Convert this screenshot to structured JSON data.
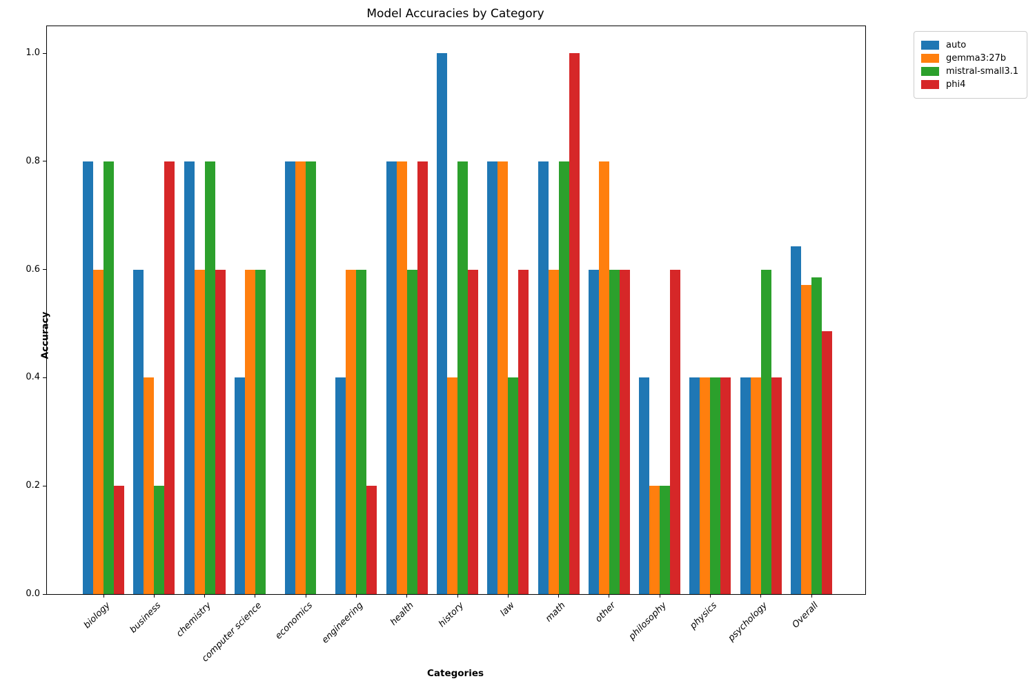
{
  "title": "Model Accuracies by Category",
  "x_axis_label": "Categories",
  "y_axis_label": "Accuracy",
  "legend": {
    "entries": [
      {
        "label": "auto",
        "color": "#1f77b4"
      },
      {
        "label": "gemma3:27b",
        "color": "#ff7f0e"
      },
      {
        "label": "mistral-small3.1",
        "color": "#2ca02c"
      },
      {
        "label": "phi4",
        "color": "#d62728"
      }
    ]
  },
  "chart_data": {
    "type": "bar",
    "title": "Model Accuracies by Category",
    "xlabel": "Categories",
    "ylabel": "Accuracy",
    "categories": [
      "biology",
      "business",
      "chemistry",
      "computer science",
      "economics",
      "engineering",
      "health",
      "history",
      "law",
      "math",
      "other",
      "philosophy",
      "physics",
      "psychology",
      "Overall"
    ],
    "series": [
      {
        "name": "auto",
        "color": "#1f77b4",
        "values": [
          0.8,
          0.6,
          0.8,
          0.4,
          0.8,
          0.4,
          0.8,
          1.0,
          0.8,
          0.8,
          0.6,
          0.4,
          0.4,
          0.4,
          0.643
        ]
      },
      {
        "name": "gemma3:27b",
        "color": "#ff7f0e",
        "values": [
          0.6,
          0.4,
          0.6,
          0.6,
          0.8,
          0.6,
          0.8,
          0.4,
          0.8,
          0.6,
          0.8,
          0.2,
          0.4,
          0.4,
          0.571
        ]
      },
      {
        "name": "mistral-small3.1",
        "color": "#2ca02c",
        "values": [
          0.8,
          0.2,
          0.8,
          0.6,
          0.8,
          0.6,
          0.6,
          0.8,
          0.4,
          0.8,
          0.6,
          0.2,
          0.4,
          0.6,
          0.586
        ]
      },
      {
        "name": "phi4",
        "color": "#d62728",
        "values": [
          0.2,
          0.8,
          0.6,
          0.0,
          0.0,
          0.2,
          0.8,
          0.6,
          0.6,
          1.0,
          0.6,
          0.6,
          0.4,
          0.4,
          0.486
        ]
      }
    ],
    "yticks": [
      "0.0",
      "0.2",
      "0.4",
      "0.6",
      "0.8",
      "1.0"
    ],
    "ylim": [
      0,
      1.05
    ],
    "grid": false,
    "legend_position": "outside upper right",
    "xtick_rotation": 45
  }
}
